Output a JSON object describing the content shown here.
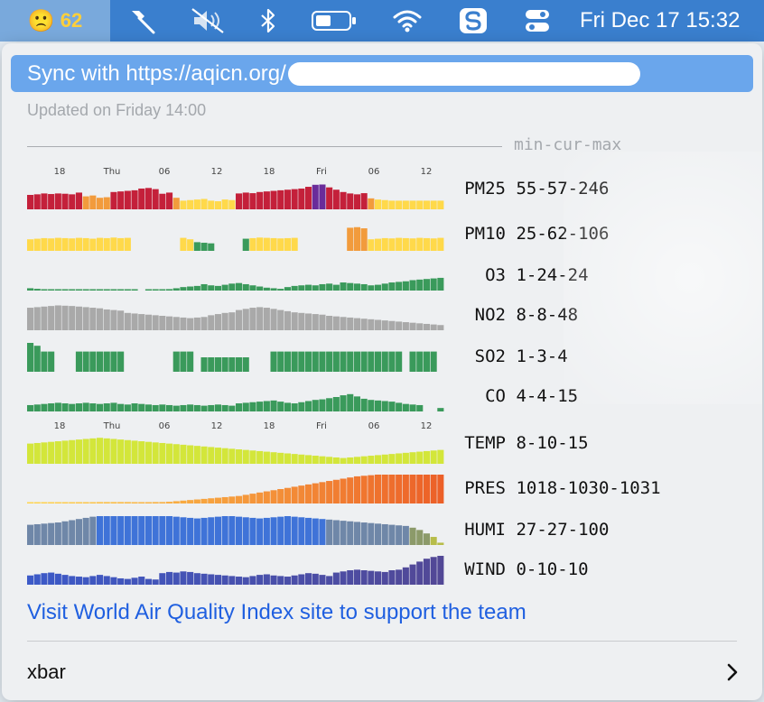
{
  "menubar": {
    "status": {
      "emoji": "🙁",
      "aqi": "62"
    },
    "icons": [
      "hammer-icon",
      "mute-icon",
      "bluetooth-icon",
      "battery-icon",
      "wifi-icon",
      "app-s-icon",
      "control-center-icon"
    ],
    "clock": "Fri Dec 17  15:32"
  },
  "menu": {
    "sync_label": "Sync with https://aqicn.org/",
    "updated": "Updated on Friday 14:00",
    "legend_label": "min-cur-max",
    "axis_labels": [
      "18",
      "Thu",
      "06",
      "12",
      "18",
      "Fri",
      "06",
      "12"
    ],
    "metrics": [
      {
        "name": "PM25",
        "range": "55-57-246"
      },
      {
        "name": "PM10",
        "range": "25-62-106"
      },
      {
        "name": "O3",
        "range": "1-24-24"
      },
      {
        "name": "NO2",
        "range": "8-8-48"
      },
      {
        "name": "SO2",
        "range": "1-3-4"
      },
      {
        "name": "CO",
        "range": "4-4-15"
      },
      {
        "name": "TEMP",
        "range": "8-10-15"
      },
      {
        "name": "PRES",
        "range": "1018-1030-1031"
      },
      {
        "name": "HUMI",
        "range": "27-27-100"
      },
      {
        "name": "WIND",
        "range": "0-10-10"
      }
    ],
    "visit_link": "Visit World Air Quality Index site to support the team",
    "xbar_label": "xbar"
  },
  "colors": {
    "good": "#3a9a5b",
    "moderate": "#ffd94a",
    "sensitive": "#f29b3c",
    "unhealthy": "#c4203a",
    "very_unhealthy": "#6a2c9a",
    "gray": "#a9a9a9",
    "temp": "#d3e63a",
    "humi": "#3f73d8",
    "wind": "#4a56b0"
  },
  "chart_data": [
    {
      "type": "bar",
      "series_name": "PM25",
      "values": [
        50,
        52,
        55,
        53,
        55,
        54,
        52,
        58,
        45,
        48,
        40,
        42,
        60,
        62,
        64,
        66,
        72,
        74,
        70,
        54,
        58,
        40,
        30,
        32,
        34,
        36,
        30,
        28,
        34,
        32,
        55,
        58,
        56,
        60,
        62,
        64,
        66,
        68,
        70,
        72,
        78,
        85,
        86,
        76,
        68,
        60,
        55,
        52,
        56,
        38,
        34,
        32,
        30,
        30,
        30,
        30,
        30,
        30,
        30,
        30
      ],
      "cats": [
        "unhealthy",
        "unhealthy",
        "unhealthy",
        "unhealthy",
        "unhealthy",
        "unhealthy",
        "unhealthy",
        "unhealthy",
        "sensitive",
        "sensitive",
        "sensitive",
        "sensitive",
        "unhealthy",
        "unhealthy",
        "unhealthy",
        "unhealthy",
        "unhealthy",
        "unhealthy",
        "unhealthy",
        "unhealthy",
        "unhealthy",
        "sensitive",
        "moderate",
        "moderate",
        "moderate",
        "moderate",
        "moderate",
        "moderate",
        "moderate",
        "moderate",
        "unhealthy",
        "unhealthy",
        "unhealthy",
        "unhealthy",
        "unhealthy",
        "unhealthy",
        "unhealthy",
        "unhealthy",
        "unhealthy",
        "unhealthy",
        "unhealthy",
        "very_unhealthy",
        "very_unhealthy",
        "unhealthy",
        "unhealthy",
        "unhealthy",
        "unhealthy",
        "unhealthy",
        "unhealthy",
        "sensitive",
        "moderate",
        "moderate",
        "moderate",
        "moderate",
        "moderate",
        "moderate",
        "moderate",
        "moderate",
        "moderate",
        "moderate"
      ]
    },
    {
      "type": "bar",
      "series_name": "PM10",
      "values": [
        40,
        42,
        44,
        43,
        45,
        44,
        43,
        45,
        44,
        42,
        45,
        44,
        46,
        44,
        45,
        0,
        0,
        0,
        0,
        0,
        0,
        0,
        45,
        40,
        30,
        28,
        26,
        0,
        0,
        0,
        0,
        42,
        44,
        46,
        45,
        44,
        43,
        44,
        45,
        0,
        0,
        0,
        0,
        0,
        0,
        0,
        80,
        82,
        78,
        40,
        42,
        44,
        43,
        45,
        44,
        43,
        45,
        44,
        43,
        45
      ],
      "cats": [
        "moderate",
        "moderate",
        "moderate",
        "moderate",
        "moderate",
        "moderate",
        "moderate",
        "moderate",
        "moderate",
        "moderate",
        "moderate",
        "moderate",
        "moderate",
        "moderate",
        "moderate",
        "none",
        "none",
        "none",
        "none",
        "none",
        "none",
        "none",
        "moderate",
        "moderate",
        "good",
        "good",
        "good",
        "none",
        "none",
        "none",
        "none",
        "good",
        "moderate",
        "moderate",
        "moderate",
        "moderate",
        "moderate",
        "moderate",
        "moderate",
        "none",
        "none",
        "none",
        "none",
        "none",
        "none",
        "none",
        "sensitive",
        "sensitive",
        "sensitive",
        "moderate",
        "moderate",
        "moderate",
        "moderate",
        "moderate",
        "moderate",
        "moderate",
        "moderate",
        "moderate",
        "moderate",
        "moderate"
      ]
    },
    {
      "type": "bar",
      "series_name": "O3",
      "color": "good",
      "values": [
        8,
        6,
        4,
        3,
        2,
        2,
        2,
        3,
        2,
        2,
        2,
        2,
        2,
        2,
        2,
        2,
        0,
        2,
        3,
        4,
        5,
        8,
        12,
        14,
        16,
        22,
        18,
        16,
        20,
        24,
        26,
        22,
        18,
        14,
        10,
        8,
        6,
        12,
        16,
        18,
        20,
        18,
        22,
        24,
        20,
        28,
        26,
        24,
        22,
        18,
        20,
        24,
        28,
        30,
        32,
        36,
        38,
        40,
        42,
        44
      ]
    },
    {
      "type": "bar",
      "series_name": "NO2",
      "color": "gray",
      "values": [
        78,
        80,
        82,
        84,
        86,
        85,
        84,
        82,
        80,
        78,
        76,
        72,
        70,
        68,
        60,
        58,
        56,
        54,
        52,
        50,
        48,
        46,
        44,
        42,
        44,
        46,
        52,
        56,
        60,
        62,
        70,
        74,
        78,
        80,
        78,
        74,
        70,
        66,
        62,
        60,
        58,
        56,
        54,
        50,
        48,
        46,
        44,
        42,
        40,
        38,
        36,
        34,
        32,
        30,
        28,
        26,
        24,
        22,
        20,
        18
      ]
    },
    {
      "type": "bar",
      "series_name": "SO2",
      "color": "good",
      "values": [
        100,
        90,
        70,
        70,
        0,
        0,
        0,
        70,
        70,
        70,
        70,
        70,
        70,
        70,
        0,
        0,
        0,
        0,
        0,
        0,
        0,
        70,
        70,
        70,
        0,
        50,
        50,
        50,
        50,
        50,
        50,
        50,
        0,
        0,
        0,
        70,
        70,
        70,
        70,
        70,
        70,
        70,
        70,
        70,
        70,
        70,
        70,
        70,
        70,
        70,
        70,
        70,
        70,
        70,
        0,
        70,
        70,
        70,
        70,
        0
      ]
    },
    {
      "type": "bar",
      "series_name": "CO",
      "color": "good",
      "values": [
        22,
        24,
        26,
        28,
        30,
        28,
        26,
        28,
        30,
        28,
        26,
        28,
        30,
        26,
        24,
        28,
        26,
        24,
        22,
        24,
        22,
        20,
        22,
        24,
        22,
        20,
        22,
        24,
        22,
        20,
        28,
        30,
        32,
        34,
        36,
        38,
        34,
        30,
        28,
        32,
        36,
        40,
        42,
        46,
        50,
        56,
        60,
        52,
        44,
        40,
        38,
        36,
        34,
        30,
        26,
        24,
        22,
        0,
        0,
        12
      ]
    },
    {
      "type": "bar",
      "series_name": "TEMP",
      "color": "temp",
      "values": [
        70,
        72,
        74,
        76,
        78,
        80,
        82,
        84,
        86,
        88,
        90,
        88,
        86,
        84,
        82,
        80,
        78,
        76,
        74,
        72,
        70,
        68,
        66,
        64,
        62,
        60,
        58,
        56,
        54,
        52,
        50,
        48,
        46,
        44,
        42,
        40,
        38,
        36,
        34,
        32,
        30,
        28,
        26,
        24,
        22,
        20,
        22,
        24,
        26,
        28,
        30,
        32,
        34,
        36,
        38,
        40,
        42,
        44,
        46,
        48
      ]
    },
    {
      "type": "bar",
      "series_name": "PRES",
      "color": "pres",
      "values": [
        2,
        2,
        2,
        3,
        3,
        3,
        4,
        4,
        4,
        4,
        5,
        5,
        5,
        5,
        5,
        4,
        4,
        4,
        5,
        5,
        6,
        8,
        10,
        12,
        14,
        16,
        18,
        20,
        22,
        24,
        26,
        30,
        34,
        38,
        42,
        46,
        50,
        54,
        58,
        62,
        66,
        70,
        74,
        78,
        82,
        86,
        90,
        94,
        96,
        98,
        100,
        100,
        100,
        100,
        100,
        100,
        100,
        100,
        100,
        100
      ]
    },
    {
      "type": "bar",
      "series_name": "HUMI",
      "color": "humi",
      "values": [
        70,
        72,
        74,
        76,
        78,
        82,
        86,
        90,
        94,
        98,
        100,
        100,
        100,
        100,
        100,
        100,
        100,
        100,
        100,
        100,
        100,
        98,
        96,
        94,
        92,
        94,
        96,
        98,
        100,
        100,
        98,
        96,
        94,
        92,
        94,
        96,
        98,
        100,
        98,
        96,
        94,
        92,
        90,
        88,
        86,
        84,
        82,
        80,
        78,
        76,
        74,
        72,
        70,
        68,
        66,
        60,
        52,
        40,
        28,
        8
      ]
    },
    {
      "type": "bar",
      "series_name": "WIND",
      "color": "wind",
      "values": [
        32,
        36,
        40,
        42,
        38,
        34,
        30,
        28,
        26,
        30,
        34,
        30,
        26,
        22,
        20,
        24,
        28,
        20,
        18,
        40,
        44,
        42,
        46,
        44,
        40,
        38,
        36,
        34,
        32,
        30,
        28,
        26,
        30,
        34,
        36,
        32,
        30,
        28,
        32,
        36,
        40,
        38,
        34,
        30,
        42,
        46,
        50,
        52,
        50,
        48,
        46,
        44,
        50,
        52,
        60,
        70,
        80,
        90,
        96,
        100
      ]
    }
  ]
}
